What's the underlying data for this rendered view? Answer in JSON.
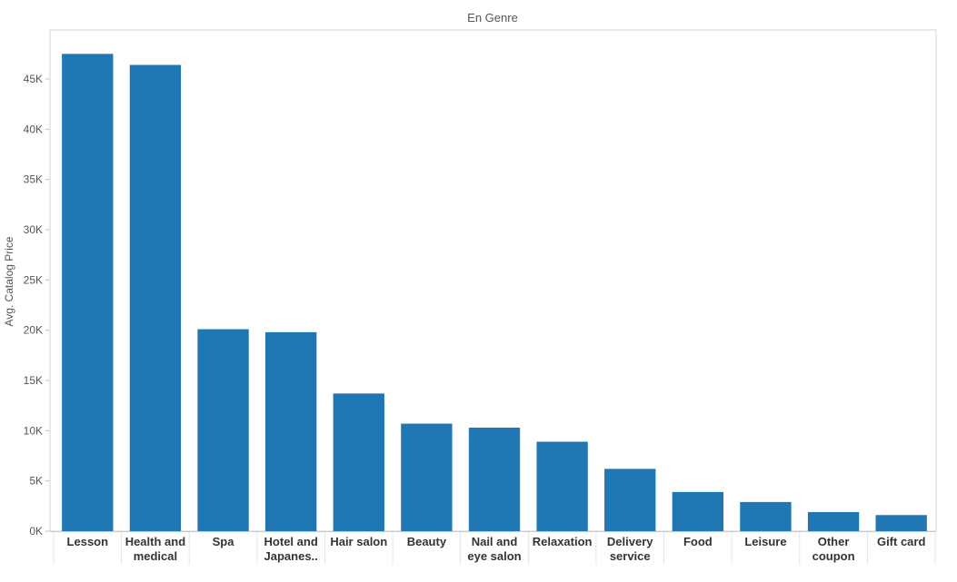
{
  "chart_data": {
    "type": "bar",
    "title": "En Genre",
    "xlabel": "",
    "ylabel": "Avg. Catalog Price",
    "categories": [
      [
        "Lesson"
      ],
      [
        "Health and",
        "medical"
      ],
      [
        "Spa"
      ],
      [
        "Hotel and",
        "Japanes.."
      ],
      [
        "Hair salon"
      ],
      [
        "Beauty"
      ],
      [
        "Nail and",
        "eye salon"
      ],
      [
        "Relaxation"
      ],
      [
        "Delivery",
        "service"
      ],
      [
        "Food"
      ],
      [
        "Leisure"
      ],
      [
        "Other",
        "coupon"
      ],
      [
        "Gift card"
      ]
    ],
    "values": [
      47500,
      46400,
      20100,
      19800,
      13700,
      10700,
      10300,
      8900,
      6200,
      3900,
      2900,
      1900,
      1600
    ],
    "ylim": [
      0,
      50000
    ],
    "yticks": [
      0,
      5000,
      10000,
      15000,
      20000,
      25000,
      30000,
      35000,
      40000,
      45000
    ],
    "ytick_labels": [
      "0K",
      "5K",
      "10K",
      "15K",
      "20K",
      "25K",
      "30K",
      "35K",
      "40K",
      "45K"
    ],
    "bar_color": "#1f77b4",
    "grid": false,
    "legend": "none"
  }
}
